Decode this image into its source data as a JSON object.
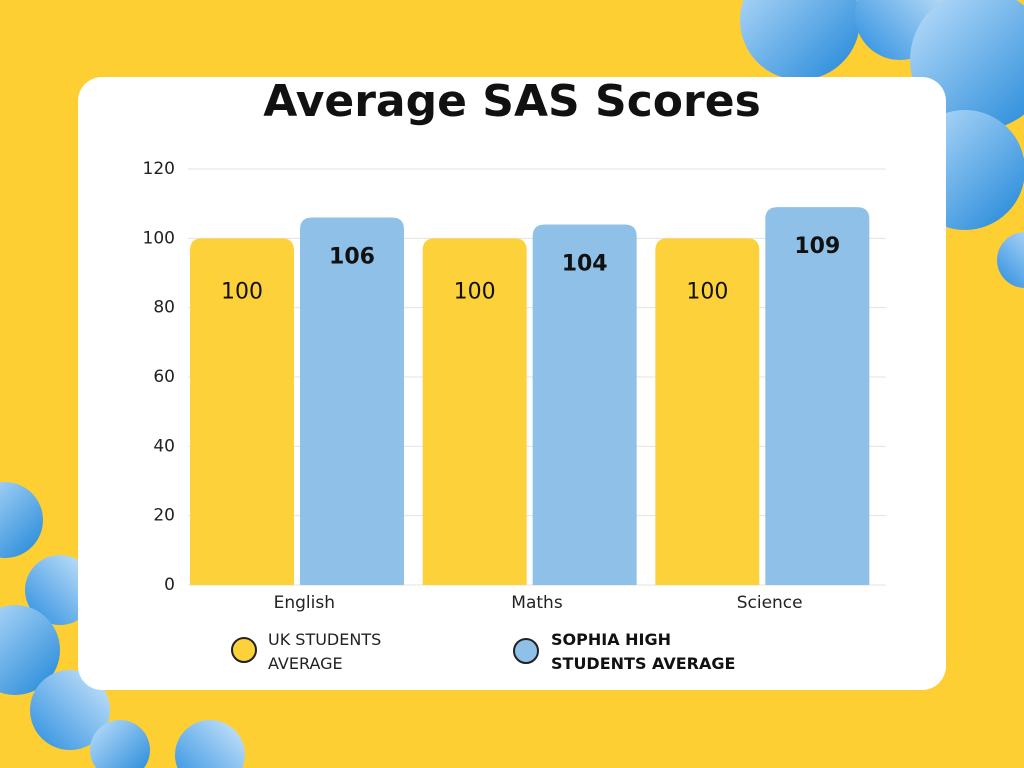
{
  "chart_data": {
    "type": "bar",
    "title": "Average SAS Scores",
    "categories": [
      "English",
      "Maths",
      "Science"
    ],
    "series": [
      {
        "name": "UK STUDENTS AVERAGE",
        "color": "#fdd13a",
        "values": [
          100,
          100,
          100
        ]
      },
      {
        "name": "SOPHIA HIGH STUDENTS AVERAGE",
        "color": "#8fc1e8",
        "values": [
          106,
          104,
          109
        ]
      }
    ],
    "ylim": [
      0,
      120
    ],
    "yticks": [
      0,
      20,
      40,
      60,
      80,
      100,
      120
    ],
    "grid": true
  }
}
